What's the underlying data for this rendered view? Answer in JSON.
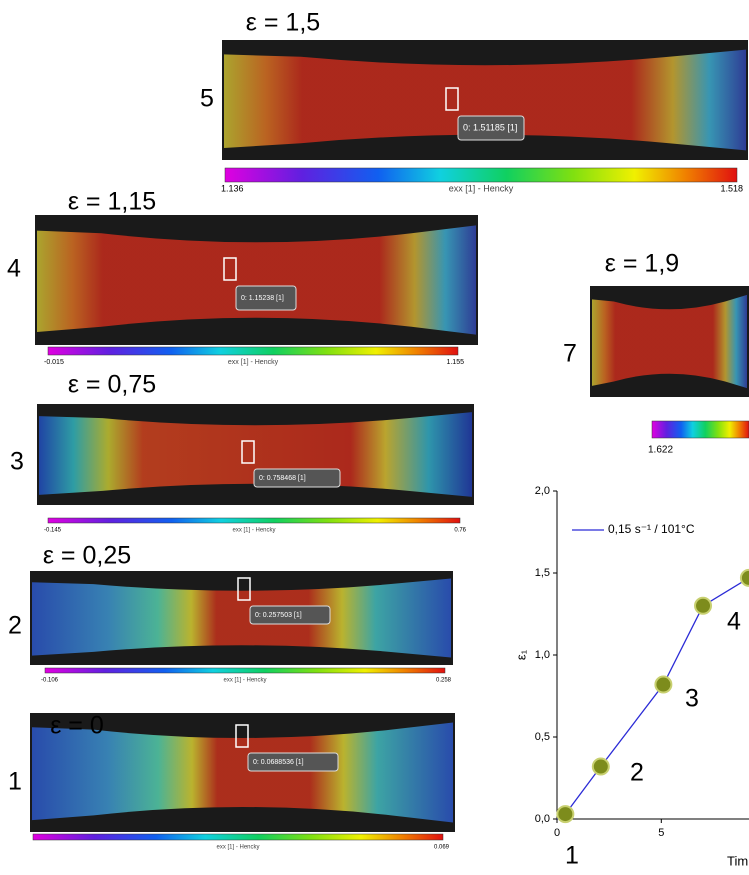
{
  "panels": [
    {
      "number": "5",
      "strain_label": "ε = 1,5",
      "callout": "0: 1.51185 [1]",
      "colorbar_min": "1.136",
      "colorbar_label": "exx [1] - Hencky",
      "colorbar_max": "1.518"
    },
    {
      "number": "4",
      "strain_label": "ε = 1,15",
      "callout": "0: 1.15238 [1]",
      "colorbar_min": "-0.015",
      "colorbar_label": "exx [1] - Hencky",
      "colorbar_max": "1.155"
    },
    {
      "number": "7",
      "strain_label": "ε = 1,9",
      "colorbar_min": "1.622"
    },
    {
      "number": "3",
      "strain_label": "ε = 0,75",
      "callout": "0: 0.758468 [1]",
      "colorbar_min": "-0.145",
      "colorbar_label": "exx [1] - Hencky",
      "colorbar_max": "0.76"
    },
    {
      "number": "2",
      "strain_label": "ε = 0,25",
      "callout": "0: 0.257503 [1]",
      "colorbar_min": "-0.106",
      "colorbar_label": "exx [1] - Hencky",
      "colorbar_max": "0.258"
    },
    {
      "number": "1",
      "strain_label": "ε = 0",
      "callout": "0: 0.0688536 [1]",
      "colorbar_label": "exx [1] - Hencky",
      "colorbar_max": "0.069"
    }
  ],
  "chart_data": {
    "type": "line",
    "ylabel": "ε₁",
    "xlabel": "Tim",
    "x": [
      0.4,
      2.1,
      5.1,
      7.0,
      9.2
    ],
    "series": [
      {
        "name": "0,15 s⁻¹ / 101°C",
        "color": "#2b2bd6",
        "marker_color": "#7d8c1c",
        "values": [
          0.03,
          0.32,
          0.82,
          1.3,
          1.47
        ]
      }
    ],
    "annotations": [
      "1",
      "2",
      "3",
      "4"
    ],
    "xlim": [
      0,
      9.3
    ],
    "xticks": [
      0,
      5
    ],
    "ylim": [
      0,
      2
    ],
    "yticks": [
      {
        "value": 0,
        "label": "0,0"
      },
      {
        "value": 0.5,
        "label": "0,5"
      },
      {
        "value": 1,
        "label": "1,0"
      },
      {
        "value": 1.5,
        "label": "1,5"
      },
      {
        "value": 2,
        "label": "2,0"
      }
    ]
  }
}
